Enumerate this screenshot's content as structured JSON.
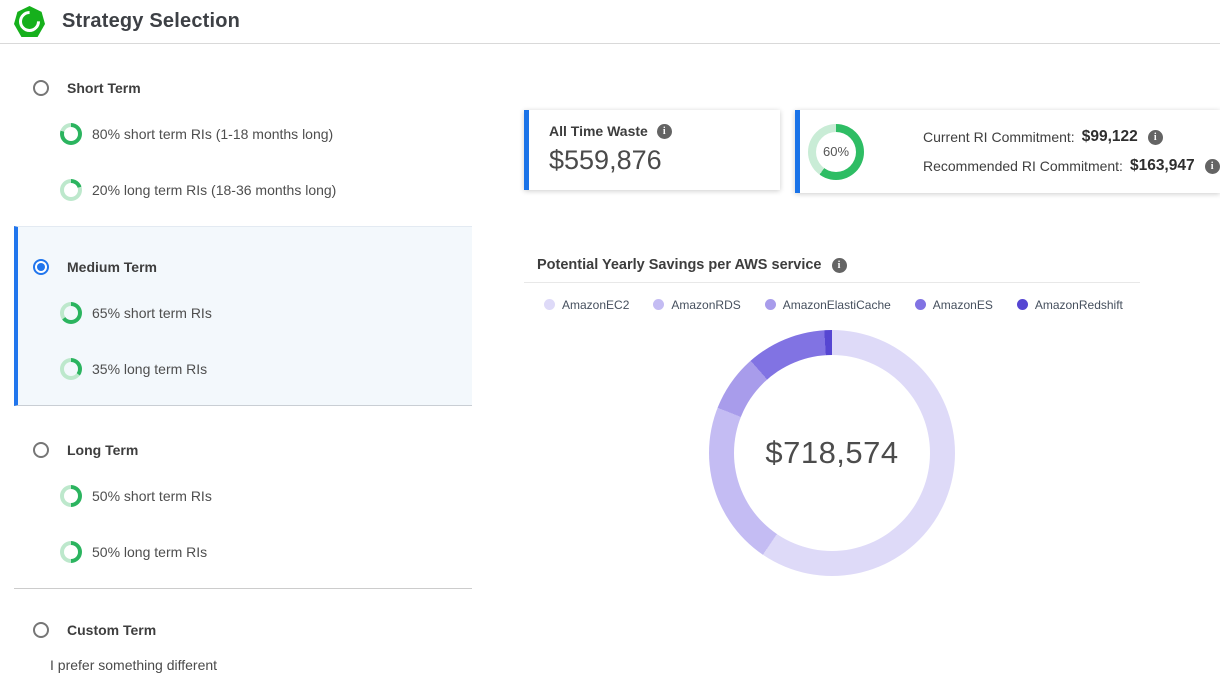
{
  "header": {
    "title": "Strategy Selection"
  },
  "icons": {
    "info": "i"
  },
  "colors": {
    "accent_blue": "#1a73e8",
    "radio_blue": "#2176ed",
    "logo_green": "#16b01c",
    "ring_green": "#2bb45f",
    "ring_green_light": "#bde8cc",
    "gauge_green": "#2ebd64",
    "gauge_green_light": "#c9ecd6",
    "selected_bg": "#f3f8fc"
  },
  "strategies": [
    {
      "label": "Short Term",
      "selected": false,
      "options": [
        {
          "percent": 80,
          "label": "80% short term RIs (1-18 months long)"
        },
        {
          "percent": 20,
          "label": "20% long term RIs (18-36 months long)"
        }
      ]
    },
    {
      "label": "Medium Term",
      "selected": true,
      "options": [
        {
          "percent": 65,
          "label": "65% short term RIs"
        },
        {
          "percent": 35,
          "label": "35% long term RIs"
        }
      ]
    },
    {
      "label": "Long Term",
      "selected": false,
      "options": [
        {
          "percent": 50,
          "label": "50% short term RIs"
        },
        {
          "percent": 50,
          "label": "50% long term RIs"
        }
      ]
    },
    {
      "label": "Custom Term",
      "selected": false,
      "divider_above": true,
      "description": "I prefer something different",
      "options": []
    }
  ],
  "cards": {
    "waste": {
      "title": "All Time Waste",
      "value": "$559,876"
    },
    "commitment": {
      "gauge_percent": 60,
      "gauge_label": "60%",
      "current_label": "Current RI Commitment:",
      "current_value": "$99,122",
      "recommended_label": "Recommended RI Commitment:",
      "recommended_value": "$163,947"
    }
  },
  "chart": {
    "title": "Potential Yearly Savings per AWS service"
  },
  "chart_data": {
    "type": "pie",
    "subtype": "donut",
    "title": "Potential Yearly Savings per AWS service",
    "center_label": "$718,574",
    "total_potential_yearly_savings": "$718,574",
    "legend_position": "top",
    "series": [
      {
        "name": "AmazonEC2",
        "percent_estimate": 59.5,
        "color": "#dedaf8"
      },
      {
        "name": "AmazonRDS",
        "percent_estimate": 21.5,
        "color": "#c4bcf3"
      },
      {
        "name": "AmazonElastiCache",
        "percent_estimate": 7.5,
        "color": "#a89ceb"
      },
      {
        "name": "AmazonES",
        "percent_estimate": 10.5,
        "color": "#8173e3"
      },
      {
        "name": "AmazonRedshift",
        "percent_estimate": 1.0,
        "color": "#5646d2"
      }
    ]
  }
}
